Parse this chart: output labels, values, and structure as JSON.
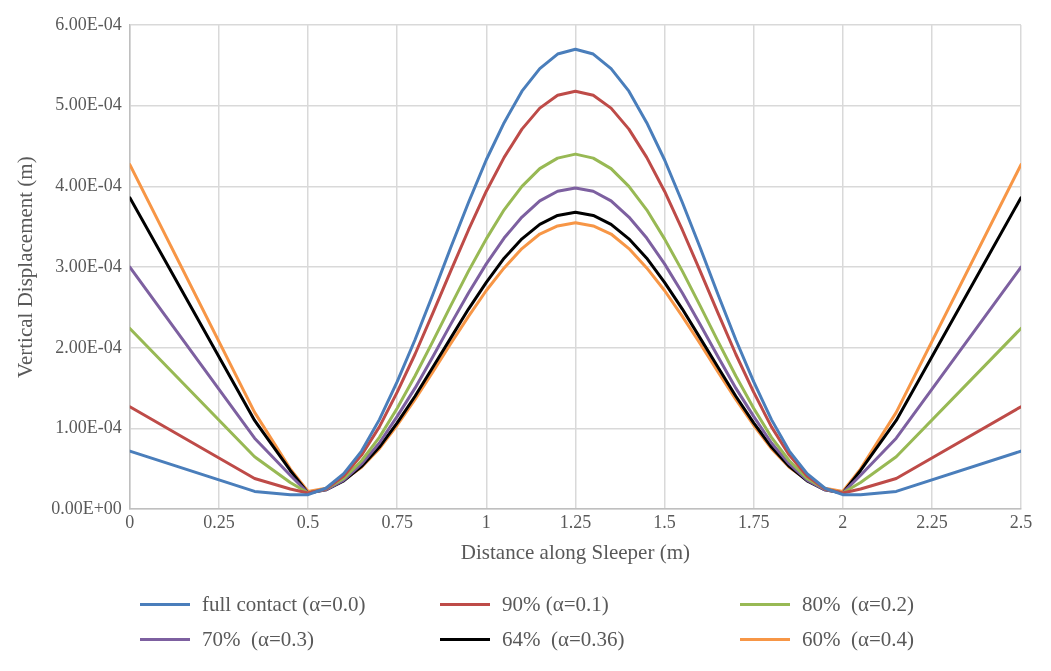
{
  "chart_data": {
    "type": "line",
    "xlabel": "Distance along Sleeper (m)",
    "ylabel": "Vertical Displacement (m)",
    "x": [
      0,
      0.35,
      0.45,
      0.5,
      0.55,
      0.6,
      0.65,
      0.7,
      0.75,
      0.8,
      0.85,
      0.9,
      0.95,
      1,
      1.05,
      1.1,
      1.15,
      1.2,
      1.25,
      1.3,
      1.35,
      1.4,
      1.45,
      1.5,
      1.55,
      1.6,
      1.65,
      1.7,
      1.75,
      1.8,
      1.85,
      1.9,
      1.95,
      2,
      2.05,
      2.15,
      2.5
    ],
    "xlim": [
      0,
      2.5
    ],
    "xticks": [
      0,
      0.25,
      0.5,
      0.75,
      1,
      1.25,
      1.5,
      1.75,
      2,
      2.25,
      2.5
    ],
    "ylim": [
      0,
      0.0006
    ],
    "yticks": [
      {
        "value": 0,
        "label": "0.00E+00"
      },
      {
        "value": 0.0001,
        "label": "1.00E-04"
      },
      {
        "value": 0.0002,
        "label": "2.00E-04"
      },
      {
        "value": 0.0003,
        "label": "3.00E-04"
      },
      {
        "value": 0.0004,
        "label": "4.00E-04"
      },
      {
        "value": 0.0005,
        "label": "5.00E-04"
      },
      {
        "value": 0.0006,
        "label": "6.00E-04"
      }
    ],
    "grid": true,
    "legend": "bottom",
    "marker": "none",
    "line_style": "solid",
    "series": [
      {
        "name": "full contact (α=0.0)",
        "color": "#4a7ebb",
        "values": [
          7.2e-05,
          2.2e-05,
          1.8e-05,
          1.8e-05,
          2.6e-05,
          4.4e-05,
          7.2e-05,
          0.000111,
          0.000158,
          0.00021,
          0.000266,
          0.000324,
          0.00038,
          0.000433,
          0.000479,
          0.000518,
          0.000546,
          0.000564,
          0.00057,
          0.000564,
          0.000546,
          0.000518,
          0.000479,
          0.000433,
          0.00038,
          0.000324,
          0.000266,
          0.00021,
          0.000158,
          0.000111,
          7.2e-05,
          4.4e-05,
          2.6e-05,
          1.8e-05,
          1.8e-05,
          2.2e-05,
          7.2e-05
        ]
      },
      {
        "name": "90% (α=0.1)",
        "color": "#be4b48",
        "values": [
          0.000127,
          3.8e-05,
          2.5e-05,
          2e-05,
          2.5e-05,
          4.1e-05,
          6.7e-05,
          0.000102,
          0.000145,
          0.000192,
          0.000243,
          0.000295,
          0.000346,
          0.000394,
          0.000436,
          0.000471,
          0.000497,
          0.000513,
          0.000518,
          0.000513,
          0.000497,
          0.000471,
          0.000436,
          0.000394,
          0.000346,
          0.000295,
          0.000243,
          0.000192,
          0.000145,
          0.000102,
          6.7e-05,
          4.1e-05,
          2.5e-05,
          2e-05,
          2.5e-05,
          3.8e-05,
          0.000127
        ]
      },
      {
        "name": "80%  (α=0.2)",
        "color": "#98b954",
        "values": [
          0.000224,
          6.5e-05,
          3.3e-05,
          2e-05,
          2.5e-05,
          3.8e-05,
          6e-05,
          8.9e-05,
          0.000125,
          0.000165,
          0.000208,
          0.000252,
          0.000295,
          0.000335,
          0.000371,
          0.0004,
          0.000422,
          0.000435,
          0.00044,
          0.000435,
          0.000422,
          0.0004,
          0.000371,
          0.000335,
          0.000295,
          0.000252,
          0.000208,
          0.000165,
          0.000125,
          8.9e-05,
          6e-05,
          3.8e-05,
          2.5e-05,
          2e-05,
          3.3e-05,
          6.5e-05,
          0.000224
        ]
      },
      {
        "name": "70%  (α=0.3)",
        "color": "#7d60a0",
        "values": [
          0.0003,
          8.8e-05,
          4.2e-05,
          2e-05,
          2.4e-05,
          3.6e-05,
          5.6e-05,
          8.2e-05,
          0.000115,
          0.00015,
          0.000189,
          0.000229,
          0.000268,
          0.000304,
          0.000336,
          0.000362,
          0.000382,
          0.000394,
          0.000398,
          0.000394,
          0.000382,
          0.000362,
          0.000336,
          0.000304,
          0.000268,
          0.000229,
          0.000189,
          0.00015,
          0.000115,
          8.2e-05,
          5.6e-05,
          3.6e-05,
          2.4e-05,
          2e-05,
          4.2e-05,
          8.8e-05,
          0.0003
        ]
      },
      {
        "name": "64%  (α=0.36)",
        "color": "#000000",
        "values": [
          0.000386,
          0.00011,
          4.8e-05,
          2e-05,
          2.4e-05,
          3.5e-05,
          5.3e-05,
          7.7e-05,
          0.000107,
          0.00014,
          0.000176,
          0.000212,
          0.000248,
          0.000281,
          0.000311,
          0.000335,
          0.000353,
          0.000364,
          0.000368,
          0.000364,
          0.000353,
          0.000335,
          0.000311,
          0.000281,
          0.000248,
          0.000212,
          0.000176,
          0.00014,
          0.000107,
          7.7e-05,
          5.3e-05,
          3.5e-05,
          2.4e-05,
          2e-05,
          4.8e-05,
          0.00011,
          0.000386
        ]
      },
      {
        "name": "60%  (α=0.4)",
        "color": "#f79646",
        "values": [
          0.000427,
          0.00012,
          5e-05,
          2.2e-05,
          2.6e-05,
          3.6e-05,
          5.2e-05,
          7.5e-05,
          0.000104,
          0.000136,
          0.00017,
          0.000205,
          0.000239,
          0.000271,
          0.000299,
          0.000323,
          0.000341,
          0.000351,
          0.000355,
          0.000351,
          0.000341,
          0.000323,
          0.000299,
          0.000271,
          0.000239,
          0.000205,
          0.00017,
          0.000136,
          0.000104,
          7.5e-05,
          5.2e-05,
          3.6e-05,
          2.6e-05,
          2.2e-05,
          5e-05,
          0.00012,
          0.000427
        ]
      }
    ]
  }
}
